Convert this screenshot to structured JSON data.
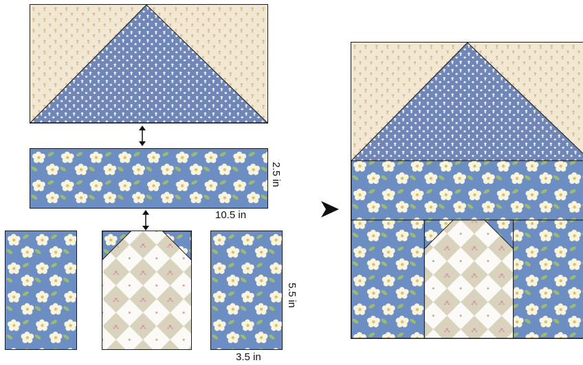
{
  "dimensions": {
    "strip_height": "2.5 in",
    "strip_width": "10.5 in",
    "side_height": "5.5 in",
    "side_width": "3.5 in"
  },
  "colors": {
    "tan_bg": "#f2e7d3",
    "tan_motif": "#d7b98c",
    "blue": "#6f86b7",
    "floral_blue": "#6d8ec2",
    "floral_petal": "#f8f4de",
    "floral_center": "#d8c36a",
    "floral_leaf": "#9dbb6f",
    "check_tan": "#d9d3bd",
    "check_white": "#fbfaf6",
    "check_motif": "#d79aa6",
    "outline": "#1a1a1a"
  },
  "icons": {
    "vertical_connector": "double-headed-vertical-arrow-icon",
    "result_pointer": "arrowhead-right-icon"
  }
}
